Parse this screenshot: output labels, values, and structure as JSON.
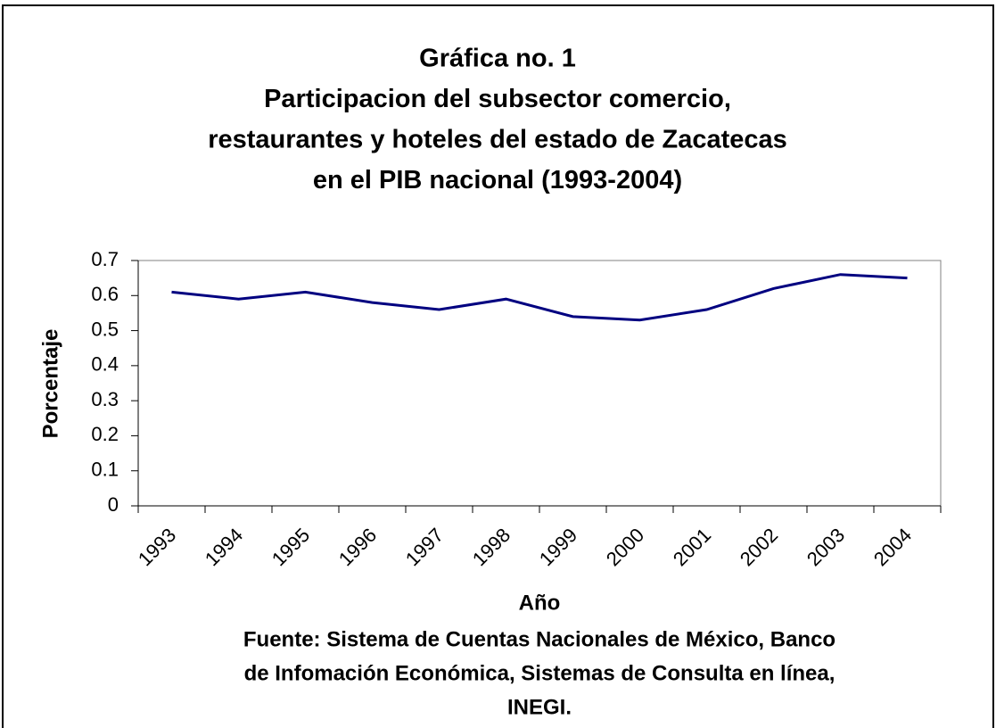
{
  "chart_data": {
    "type": "line",
    "title": [
      "Gráfica no. 1",
      "Participacion del subsector comercio,",
      "restaurantes y hoteles del estado de Zacatecas",
      "en el PIB nacional (1993-2004)"
    ],
    "xlabel": "Año",
    "ylabel": "Porcentaje",
    "source": [
      "Fuente: Sistema de Cuentas Nacionales de México, Banco",
      "de Infomación Económica, Sistemas de Consulta en línea,",
      "INEGI."
    ],
    "categories": [
      "1993",
      "1994",
      "1995",
      "1996",
      "1997",
      "1998",
      "1999",
      "2000",
      "2001",
      "2002",
      "2003",
      "2004"
    ],
    "values": [
      0.61,
      0.59,
      0.61,
      0.58,
      0.56,
      0.59,
      0.54,
      0.53,
      0.56,
      0.62,
      0.66,
      0.65
    ],
    "color": "#000080",
    "ylim": [
      0,
      0.7
    ],
    "yticks": [
      0,
      0.1,
      0.2,
      0.3,
      0.4,
      0.5,
      0.6,
      0.7
    ],
    "grid": false
  }
}
